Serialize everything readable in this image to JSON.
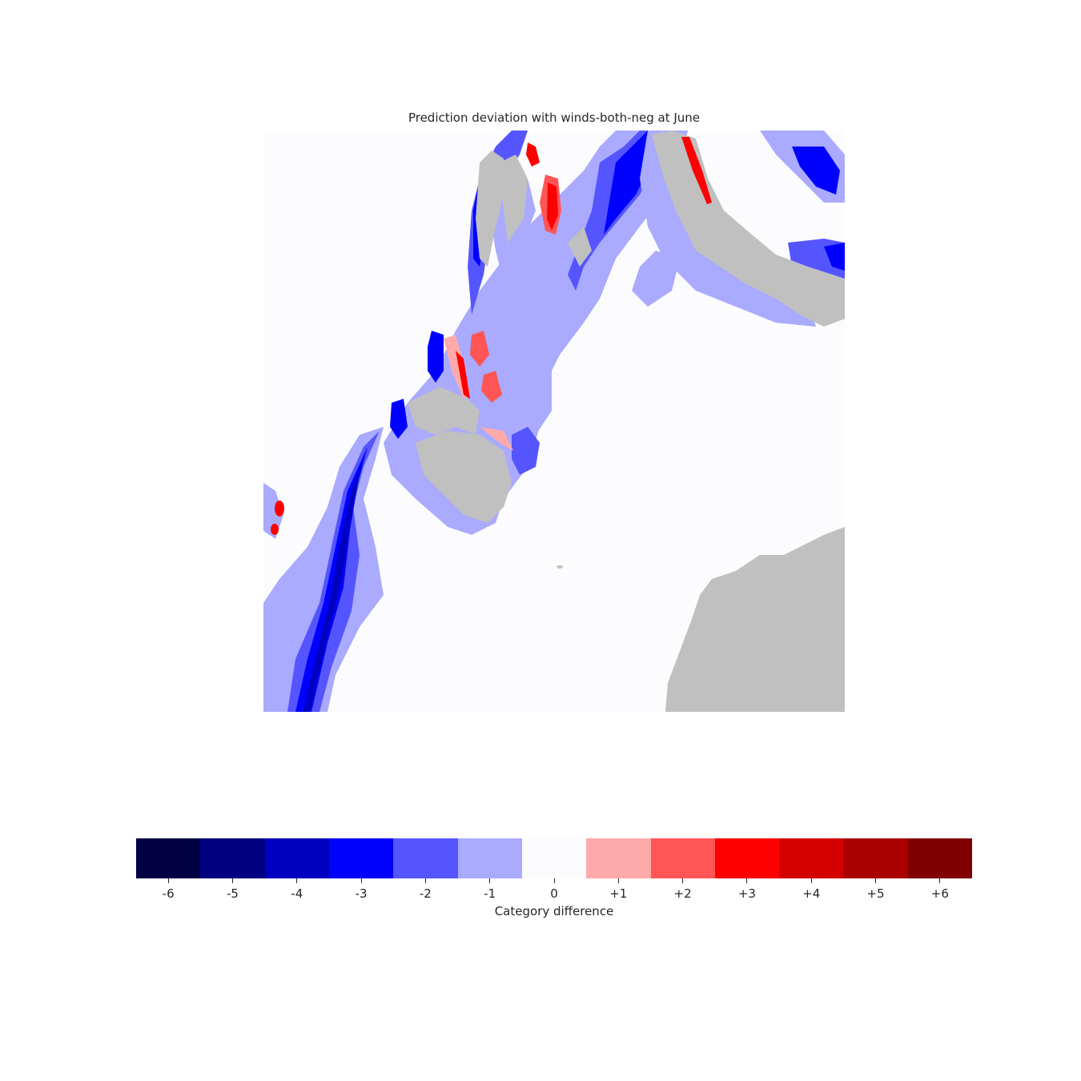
{
  "chart_data": {
    "type": "heatmap",
    "title": "Prediction deviation with winds-both-neg at June",
    "colorbar": {
      "label": "Category difference",
      "orientation": "horizontal",
      "location": "bottom",
      "categories": [
        "-6",
        "-5",
        "-4",
        "-3",
        "-2",
        "-1",
        "0",
        "+1",
        "+2",
        "+3",
        "+4",
        "+5",
        "+6"
      ],
      "values": [
        -6,
        -5,
        -4,
        -3,
        -2,
        -1,
        0,
        1,
        2,
        3,
        4,
        5,
        6
      ],
      "colors": [
        "#000045",
        "#000080",
        "#0000c0",
        "#0000ff",
        "#5555ff",
        "#aaaaff",
        "#fcfcff",
        "#ffaaaa",
        "#ff5555",
        "#ff0000",
        "#d40000",
        "#aa0000",
        "#800000"
      ]
    },
    "land_color": "#c0c0c0",
    "axes_visible": false
  }
}
